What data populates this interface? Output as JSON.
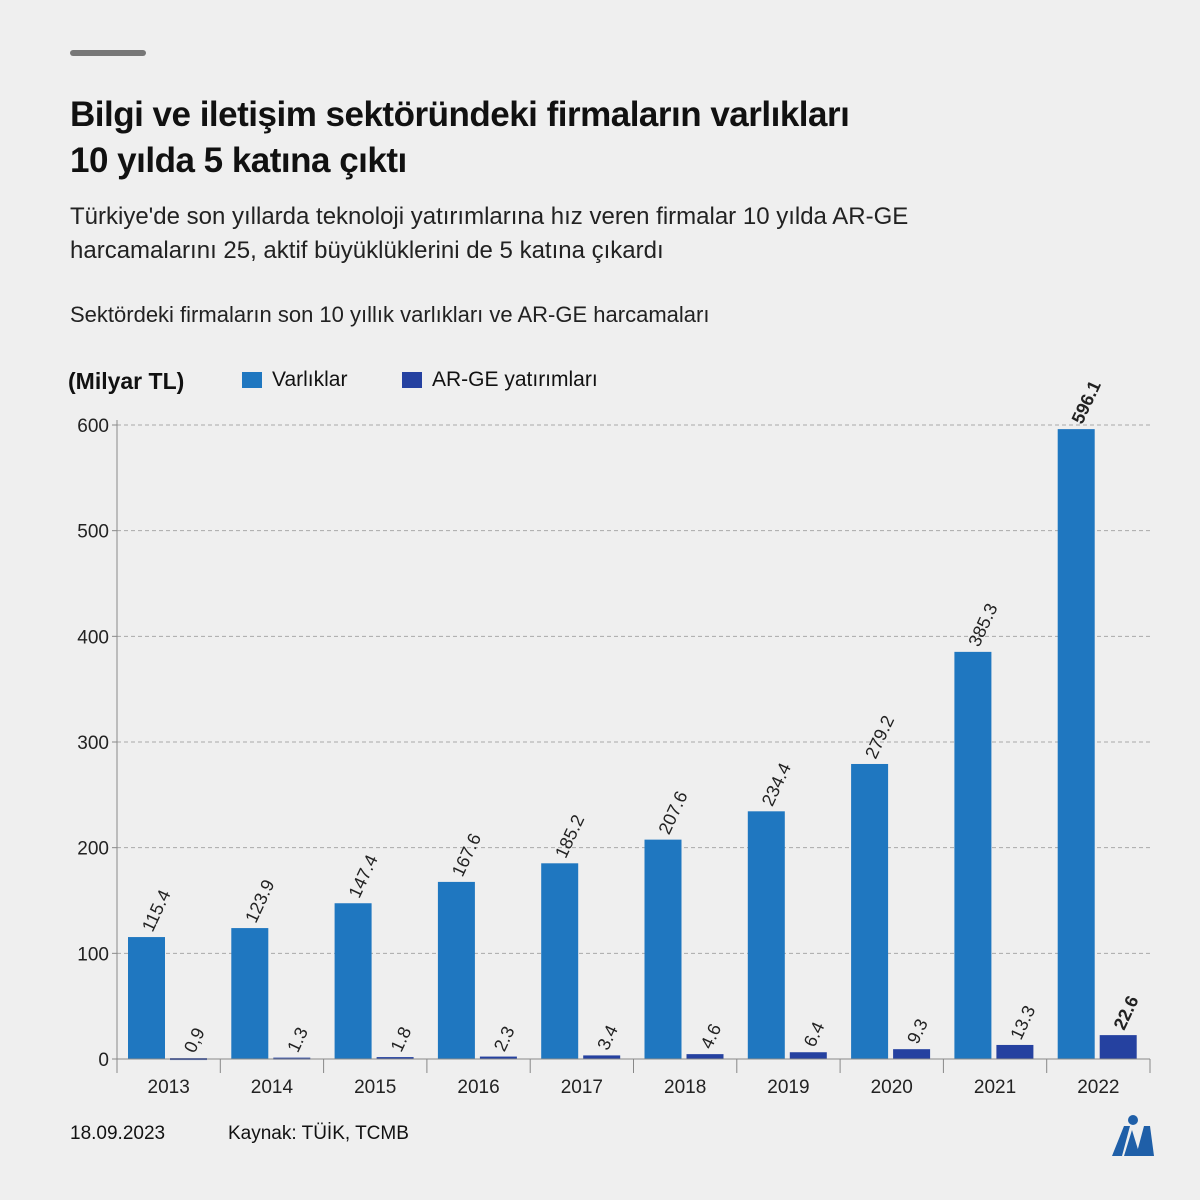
{
  "title_lines": [
    "Bilgi ve iletişim sektöründeki firmaların varlıkları",
    "10 yılda 5 katına çıktı"
  ],
  "subtitle_lines": [
    "Türkiye'de son yıllarda teknoloji yatırımlarına hız veren firmalar 10 yılda AR-GE",
    "harcamalarını 25, aktif büyüklüklerini de 5 katına çıkardı"
  ],
  "caption": "Sektördeki firmaların son 10 yıllık varlıkları ve AR-GE harcamaları",
  "footer": {
    "date": "18.09.2023",
    "source": "Kaynak: TÜİK, TCMB",
    "logo": "AA"
  },
  "chart_data": {
    "type": "bar",
    "ylabel": "(Milyar TL)",
    "ylim": [
      0,
      600
    ],
    "yticks": [
      0,
      100,
      200,
      300,
      400,
      500,
      600
    ],
    "grid": true,
    "legend_position": "top-left",
    "categories": [
      "2013",
      "2014",
      "2015",
      "2016",
      "2017",
      "2018",
      "2019",
      "2020",
      "2021",
      "2022"
    ],
    "series": [
      {
        "name": "Varlıklar",
        "color": "#1f77c0",
        "values": [
          115.4,
          123.9,
          147.4,
          167.6,
          185.2,
          207.6,
          234.4,
          279.2,
          385.3,
          596.1
        ],
        "labels": [
          "115.4",
          "123.9",
          "147.4",
          "167.6",
          "185.2",
          "207.6",
          "234.4",
          "279.2",
          "385.3",
          "596.1"
        ]
      },
      {
        "name": "AR-GE yatırımları",
        "color": "#2541a0",
        "values": [
          0.9,
          1.3,
          1.8,
          2.3,
          3.4,
          4.6,
          6.4,
          9.3,
          13.3,
          22.6
        ],
        "labels": [
          "0,9",
          "1.3",
          "1.8",
          "2.3",
          "3.4",
          "4.6",
          "6.4",
          "9.3",
          "13.3",
          "22.6"
        ]
      }
    ]
  }
}
